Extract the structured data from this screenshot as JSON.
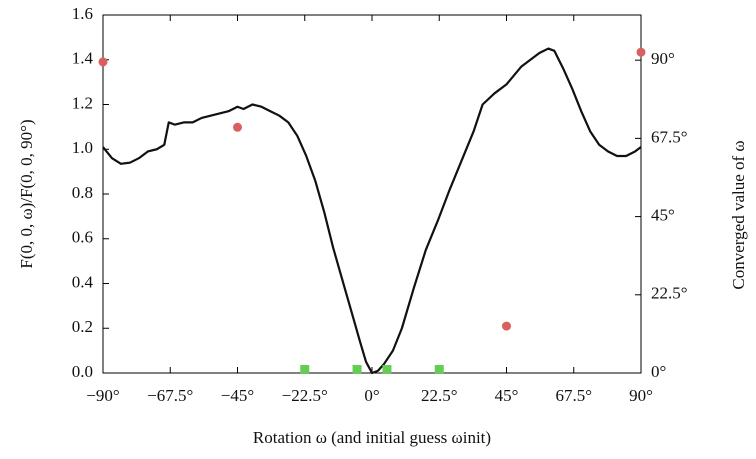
{
  "chart_data": {
    "type": "line",
    "x_label": "Rotation ω (and initial guess ωinit)",
    "y_label": "F(0, 0, ω)/F(0, 0, 90°)",
    "y2_label": "Converged value of ω",
    "xlim": [
      -90,
      90
    ],
    "xticks": [
      {
        "value": -90,
        "label": "−90°"
      },
      {
        "value": -67.5,
        "label": "−67.5°"
      },
      {
        "value": -45,
        "label": "−45°"
      },
      {
        "value": -22.5,
        "label": "−22.5°"
      },
      {
        "value": 0,
        "label": "0°"
      },
      {
        "value": 22.5,
        "label": "22.5°"
      },
      {
        "value": 45,
        "label": "45°"
      },
      {
        "value": 67.5,
        "label": "67.5°"
      },
      {
        "value": 90,
        "label": "90°"
      }
    ],
    "ylim": [
      0,
      1.6
    ],
    "yticks": [
      {
        "value": 0,
        "label": "0.0"
      },
      0.2,
      0.4,
      0.6,
      0.8,
      {
        "value": 1,
        "label": "1.0"
      },
      1.2,
      1.4,
      1.6
    ],
    "y2lim": [
      0,
      103
    ],
    "y2ticks": [
      {
        "value": 0,
        "label": "0°"
      },
      {
        "value": 22.5,
        "label": "22.5°"
      },
      {
        "value": 45,
        "label": "45°"
      },
      {
        "value": 67.5,
        "label": "67.5°"
      },
      {
        "value": 90,
        "label": "90°"
      }
    ],
    "series": [
      {
        "type": "line",
        "color": "#111111",
        "x": [
          -90,
          -87,
          -84,
          -81,
          -78,
          -75,
          -72,
          -69.5,
          -68,
          -66,
          -63,
          -60,
          -57,
          -54,
          -51,
          -48,
          -45,
          -43,
          -40,
          -37,
          -34,
          -31,
          -28,
          -25,
          -22,
          -19,
          -16,
          -13,
          -10,
          -7,
          -4,
          -2,
          0,
          2,
          4,
          7,
          10,
          14,
          18,
          22,
          26,
          30,
          34,
          37,
          41,
          45,
          50,
          53,
          56,
          59,
          61,
          64,
          67,
          70,
          73,
          76,
          79,
          82,
          85,
          88,
          90
        ],
        "values": [
          1.01,
          0.96,
          0.935,
          0.94,
          0.96,
          0.99,
          1.0,
          1.02,
          1.12,
          1.11,
          1.12,
          1.12,
          1.14,
          1.15,
          1.16,
          1.17,
          1.19,
          1.18,
          1.2,
          1.19,
          1.17,
          1.15,
          1.12,
          1.06,
          0.97,
          0.86,
          0.72,
          0.56,
          0.42,
          0.28,
          0.14,
          0.05,
          0.0,
          0.01,
          0.04,
          0.1,
          0.2,
          0.38,
          0.55,
          0.68,
          0.82,
          0.95,
          1.08,
          1.2,
          1.25,
          1.29,
          1.37,
          1.4,
          1.43,
          1.45,
          1.44,
          1.36,
          1.27,
          1.17,
          1.08,
          1.02,
          0.99,
          0.97,
          0.97,
          0.99,
          1.01
        ]
      },
      {
        "type": "scatter",
        "marker": "circle",
        "color": "#d9605f",
        "axis": "y2",
        "x": [
          -90,
          -45,
          45,
          90
        ],
        "values": [
          89.5,
          70.7,
          13.5,
          92.3
        ]
      },
      {
        "type": "scatter",
        "marker": "square",
        "color": "#66cc55",
        "axis": "y2",
        "x": [
          -22.5,
          -5,
          5,
          22.5
        ],
        "values": [
          1,
          1,
          1,
          1
        ]
      }
    ]
  }
}
